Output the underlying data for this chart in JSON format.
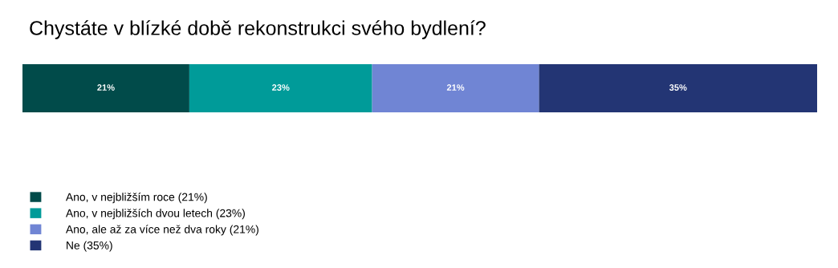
{
  "chart_data": {
    "type": "bar",
    "orientation": "horizontal",
    "stacked": true,
    "title": "Chystáte v blízké době rekonstrukci svého bydlení?",
    "categories": [
      null
    ],
    "xlim": [
      0,
      100
    ],
    "tick_labels": false,
    "legend": "bottom left",
    "grid": false,
    "series": [
      {
        "name": "Ano, v nejbližším roce (21%)",
        "color": "#014b4a",
        "values": [
          21
        ],
        "value_labels": [
          "21%"
        ]
      },
      {
        "name": "Ano, v nejbližších dvou letech (23%)",
        "color": "#009b99",
        "values": [
          23
        ],
        "value_labels": [
          "23%"
        ]
      },
      {
        "name": "Ano, ale až za více než dva roky (21%)",
        "color": "#7085d4",
        "values": [
          21
        ],
        "value_labels": [
          "21%"
        ]
      },
      {
        "name": "Ne (35%)",
        "color": "#233574",
        "values": [
          35
        ],
        "value_labels": [
          "35%"
        ]
      }
    ]
  }
}
